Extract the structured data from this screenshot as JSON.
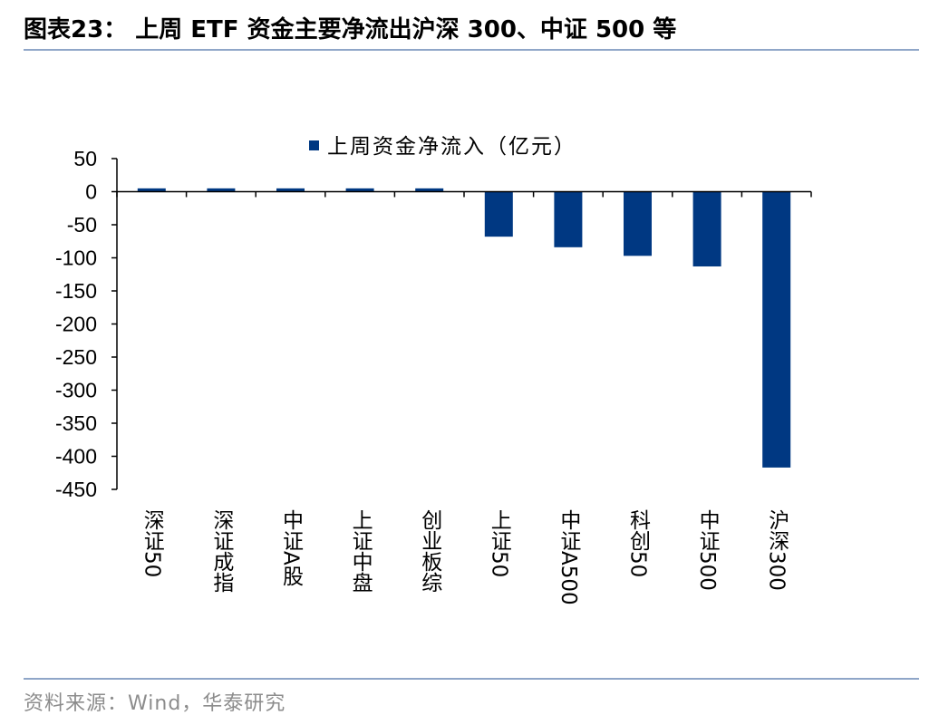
{
  "figure": {
    "title": "图表23： 上周 ETF 资金主要净流出沪深 300、中证 500 等",
    "source": "资料来源：Wind，华泰研究"
  },
  "colors": {
    "bar": "#003882",
    "axis": "#000000",
    "rule": "#8fa6c8",
    "source_text": "#8c8c8c"
  },
  "chart_data": {
    "type": "bar",
    "categories": [
      "深证50",
      "深证成指",
      "中证A股",
      "上证中盘",
      "创业板综",
      "上证50",
      "中证A500",
      "科创50",
      "中证500",
      "沪深300"
    ],
    "series": [
      {
        "name": "上周资金净流入（亿元）",
        "values": [
          5,
          5,
          5,
          5,
          5,
          -68,
          -84,
          -97,
          -113,
          -417
        ]
      }
    ],
    "ylim": [
      -450,
      50
    ],
    "yticks": [
      50,
      0,
      -50,
      -100,
      -150,
      -200,
      -250,
      -300,
      -350,
      -400,
      -450
    ],
    "grid": false,
    "legend_position": "top-center"
  }
}
